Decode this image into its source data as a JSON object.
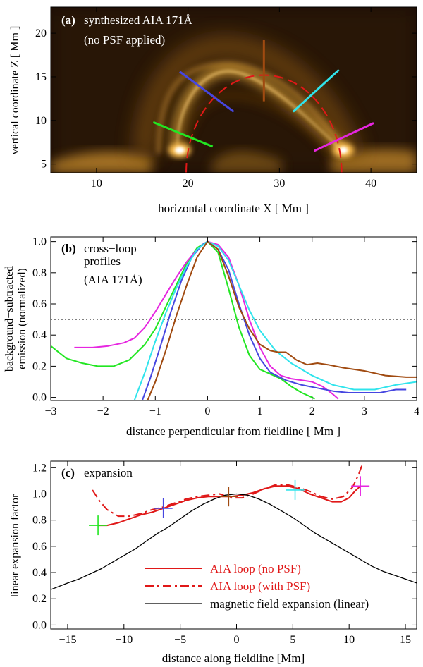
{
  "panels": {
    "a": {
      "tag": "(a)",
      "caption_line1": "synthesized AIA 171Å",
      "caption_line2": "(no PSF applied)",
      "xlabel": "horizontal coordinate  X  [ Mm ]",
      "ylabel": "vertical coordinate  Z  [ Mm ]"
    },
    "b": {
      "tag": "(b)",
      "caption_line1": "cross−loop",
      "caption_line2": "profiles",
      "caption_line3": "(AIA 171Å)",
      "xlabel": "distance perpendicular from fieldline  [ Mm ]",
      "ylabel_line1": "background−subtracted",
      "ylabel_line2": "emission (normalized)"
    },
    "c": {
      "tag": "(c)",
      "caption": "expansion",
      "xlabel": "distance along fieldline  [Mm]",
      "ylabel": "linear expansion factor",
      "legend": [
        "AIA loop (no PSF)",
        "AIA loop (with PSF)",
        "magnetic field expansion (linear)"
      ]
    }
  },
  "colors": {
    "green": "#22e622",
    "blue": "#4646e0",
    "brown": "#a04a10",
    "cyan": "#30e4ec",
    "magenta": "#e626e0",
    "red": "#e01818",
    "black": "#000000"
  },
  "chart_data": [
    {
      "type": "heatmap",
      "title": "synthesized AIA 171Å (no PSF applied)",
      "xlabel": "horizontal coordinate X [ Mm ]",
      "ylabel": "vertical coordinate Z [ Mm ]",
      "xlim": [
        5,
        45
      ],
      "ylim": [
        4,
        23
      ],
      "xticks": [
        10,
        20,
        30,
        40
      ],
      "yticks": [
        5,
        10,
        15,
        20
      ],
      "loop": {
        "center_x": 28.3,
        "apex_z": 15.2,
        "foot_left_x": 19.8,
        "foot_right_x": 36.8,
        "base_z": 4
      },
      "bright_footpoints": [
        {
          "x": 19.8,
          "z": 6.5
        },
        {
          "x": 36.8,
          "z": 6.5
        }
      ],
      "cuts": [
        {
          "color": "green",
          "from": [
            16.2,
            9.8
          ],
          "to": [
            22.7,
            7.0
          ]
        },
        {
          "color": "blue",
          "from": [
            19.1,
            15.6
          ],
          "to": [
            25.0,
            11.0
          ]
        },
        {
          "color": "brown",
          "from": [
            28.3,
            19.2
          ],
          "to": [
            28.3,
            12.2
          ]
        },
        {
          "color": "cyan",
          "from": [
            31.5,
            11.0
          ],
          "to": [
            36.5,
            15.8
          ]
        },
        {
          "color": "magenta",
          "from": [
            33.8,
            6.5
          ],
          "to": [
            40.3,
            9.7
          ]
        }
      ]
    },
    {
      "type": "line",
      "title": "cross−loop profiles (AIA 171Å)",
      "xlabel": "distance perpendicular from fieldline [ Mm ]",
      "ylabel": "background−subtracted emission (normalized)",
      "xlim": [
        -3,
        4
      ],
      "ylim": [
        -0.02,
        1.03
      ],
      "xticks": [
        -3,
        -2,
        -1,
        0,
        1,
        2,
        3,
        4
      ],
      "yticks": [
        0.0,
        0.2,
        0.4,
        0.6,
        0.8,
        1.0
      ],
      "reference_line": 0.5,
      "series": [
        {
          "name": "green",
          "color": "green",
          "x": [
            -3.0,
            -2.7,
            -2.4,
            -2.1,
            -1.8,
            -1.5,
            -1.2,
            -1.0,
            -0.8,
            -0.6,
            -0.4,
            -0.2,
            0.0,
            0.2,
            0.4,
            0.6,
            0.8,
            1.0,
            1.2,
            1.4,
            1.6,
            1.8,
            2.0,
            2.05
          ],
          "y": [
            0.33,
            0.25,
            0.22,
            0.2,
            0.2,
            0.24,
            0.34,
            0.44,
            0.58,
            0.72,
            0.86,
            0.96,
            1.0,
            0.93,
            0.7,
            0.45,
            0.27,
            0.18,
            0.15,
            0.12,
            0.07,
            0.03,
            0.0,
            -0.01
          ]
        },
        {
          "name": "magenta",
          "color": "magenta",
          "x": [
            -2.55,
            -2.2,
            -1.9,
            -1.6,
            -1.4,
            -1.2,
            -1.0,
            -0.8,
            -0.6,
            -0.4,
            -0.2,
            0.0,
            0.2,
            0.4,
            0.6,
            0.8,
            1.0,
            1.2,
            1.4,
            1.6,
            1.8,
            2.0,
            2.2,
            2.4,
            2.5
          ],
          "y": [
            0.32,
            0.32,
            0.33,
            0.35,
            0.38,
            0.45,
            0.55,
            0.66,
            0.77,
            0.87,
            0.95,
            1.0,
            0.98,
            0.9,
            0.72,
            0.5,
            0.32,
            0.2,
            0.14,
            0.12,
            0.11,
            0.1,
            0.07,
            0.02,
            -0.01
          ]
        },
        {
          "name": "blue",
          "color": "blue",
          "x": [
            -1.25,
            -1.1,
            -0.9,
            -0.7,
            -0.5,
            -0.3,
            -0.1,
            0.0,
            0.2,
            0.4,
            0.6,
            0.8,
            1.0,
            1.2,
            1.5,
            1.8,
            2.1,
            2.4,
            2.7,
            3.0,
            3.3,
            3.6,
            3.8
          ],
          "y": [
            -0.02,
            0.12,
            0.33,
            0.55,
            0.75,
            0.9,
            0.98,
            1.0,
            0.95,
            0.82,
            0.6,
            0.4,
            0.25,
            0.16,
            0.11,
            0.08,
            0.06,
            0.04,
            0.03,
            0.03,
            0.03,
            0.05,
            0.05
          ]
        },
        {
          "name": "cyan",
          "color": "cyan",
          "x": [
            -1.4,
            -1.2,
            -1.0,
            -0.8,
            -0.6,
            -0.4,
            -0.2,
            0.0,
            0.2,
            0.4,
            0.6,
            0.8,
            1.0,
            1.3,
            1.6,
            2.0,
            2.4,
            2.8,
            3.2,
            3.6,
            4.0
          ],
          "y": [
            -0.02,
            0.16,
            0.36,
            0.54,
            0.7,
            0.84,
            0.95,
            1.0,
            0.97,
            0.88,
            0.72,
            0.56,
            0.43,
            0.3,
            0.22,
            0.14,
            0.08,
            0.05,
            0.05,
            0.08,
            0.1
          ]
        },
        {
          "name": "brown",
          "color": "brown",
          "x": [
            -1.15,
            -1.0,
            -0.8,
            -0.6,
            -0.4,
            -0.2,
            0.0,
            0.2,
            0.4,
            0.6,
            0.8,
            1.0,
            1.2,
            1.35,
            1.5,
            1.7,
            1.9,
            2.1,
            2.3,
            2.6,
            3.0,
            3.4,
            3.8,
            4.0
          ],
          "y": [
            -0.02,
            0.1,
            0.3,
            0.52,
            0.72,
            0.9,
            1.0,
            0.95,
            0.78,
            0.58,
            0.44,
            0.34,
            0.3,
            0.29,
            0.29,
            0.24,
            0.21,
            0.22,
            0.21,
            0.19,
            0.17,
            0.14,
            0.13,
            0.13
          ]
        }
      ]
    },
    {
      "type": "line",
      "title": "expansion",
      "xlabel": "distance along fieldline [Mm]",
      "ylabel": "linear expansion factor",
      "xlim": [
        -16.5,
        16
      ],
      "ylim": [
        -0.03,
        1.25
      ],
      "xticks": [
        -15,
        -10,
        -5,
        0,
        5,
        10,
        15
      ],
      "yticks": [
        0.0,
        0.2,
        0.4,
        0.6,
        0.8,
        1.0,
        1.2
      ],
      "series": [
        {
          "name": "AIA loop (no PSF)",
          "color": "red",
          "style": "solid",
          "x": [
            -12.3,
            -11.5,
            -10.5,
            -9.5,
            -8.5,
            -7.5,
            -6.5,
            -5.5,
            -4.5,
            -3.5,
            -2.5,
            -1.5,
            -0.5,
            0.5,
            1.5,
            2.5,
            3.5,
            4.5,
            5.5,
            6.5,
            7.5,
            8.5,
            9.3,
            10.0,
            10.5,
            11.0
          ],
          "y": [
            0.76,
            0.76,
            0.78,
            0.81,
            0.84,
            0.86,
            0.89,
            0.92,
            0.95,
            0.97,
            0.98,
            0.98,
            0.98,
            0.99,
            1.01,
            1.04,
            1.06,
            1.06,
            1.04,
            1.0,
            0.97,
            0.94,
            0.94,
            0.97,
            1.02,
            1.06
          ]
        },
        {
          "name": "AIA loop (with PSF)",
          "color": "red",
          "style": "dashdot",
          "x": [
            -12.8,
            -12.2,
            -11.5,
            -10.5,
            -9.5,
            -8.5,
            -7.5,
            -6.5,
            -5.5,
            -4.5,
            -3.5,
            -2.5,
            -1.5,
            -0.5,
            0.5,
            1.5,
            2.5,
            3.5,
            4.5,
            5.5,
            6.5,
            7.5,
            8.5,
            9.5,
            10.3,
            10.8,
            11.2
          ],
          "y": [
            1.03,
            0.95,
            0.88,
            0.83,
            0.83,
            0.85,
            0.88,
            0.9,
            0.93,
            0.96,
            0.98,
            0.99,
            1.0,
            0.97,
            0.97,
            1.0,
            1.04,
            1.07,
            1.07,
            1.05,
            1.02,
            0.98,
            0.96,
            0.98,
            1.05,
            1.14,
            1.23
          ]
        },
        {
          "name": "magnetic field expansion (linear)",
          "color": "black",
          "style": "solid",
          "x": [
            -16.5,
            -15,
            -14,
            -13,
            -12,
            -11,
            -10,
            -9,
            -8,
            -7,
            -6,
            -5,
            -4,
            -3,
            -2,
            -1,
            0,
            1,
            2,
            3,
            4,
            5,
            6,
            7,
            8,
            9,
            10,
            11,
            12,
            13,
            14,
            15,
            16
          ],
          "y": [
            0.27,
            0.32,
            0.35,
            0.39,
            0.43,
            0.48,
            0.53,
            0.58,
            0.64,
            0.7,
            0.75,
            0.81,
            0.87,
            0.92,
            0.96,
            0.99,
            1.0,
            0.99,
            0.96,
            0.92,
            0.87,
            0.82,
            0.76,
            0.7,
            0.65,
            0.6,
            0.55,
            0.5,
            0.45,
            0.41,
            0.38,
            0.35,
            0.32
          ]
        }
      ],
      "markers": [
        {
          "color": "green",
          "x": -12.3,
          "y": 0.76
        },
        {
          "color": "blue",
          "x": -6.5,
          "y": 0.89
        },
        {
          "color": "brown",
          "x": -0.7,
          "y": 0.98
        },
        {
          "color": "cyan",
          "x": 5.2,
          "y": 1.03
        },
        {
          "color": "magenta",
          "x": 11.0,
          "y": 1.06
        }
      ]
    }
  ]
}
